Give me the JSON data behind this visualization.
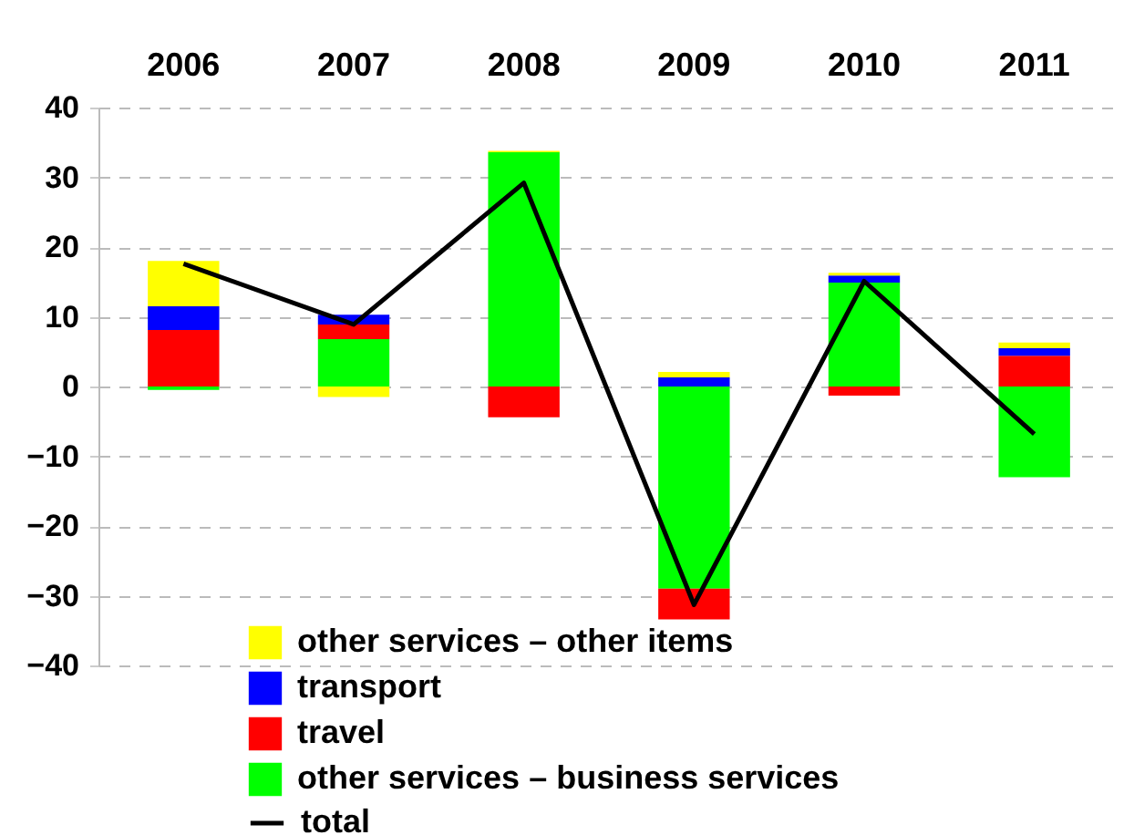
{
  "chart_data": {
    "type": "bar",
    "stacked": true,
    "categories": [
      "2006",
      "2007",
      "2008",
      "2009",
      "2010",
      "2011"
    ],
    "series": [
      {
        "name": "other services – business services",
        "color": "#00ff00",
        "values": [
          -0.5,
          6.8,
          33.6,
          -29,
          14.9,
          -13
        ]
      },
      {
        "name": "travel",
        "color": "#ff0000",
        "values": [
          8.1,
          2.1,
          -4.4,
          -4.4,
          -1.3,
          4.4
        ]
      },
      {
        "name": "transport",
        "color": "#0000ff",
        "values": [
          3.4,
          1.4,
          0,
          1.3,
          1,
          1.1
        ]
      },
      {
        "name": "other services – other items",
        "color": "#ffff00",
        "values": [
          6.5,
          -1.5,
          0.2,
          0.8,
          0.4,
          0.8
        ]
      },
      {
        "name": "total",
        "type": "line",
        "color": "#000000",
        "values": [
          17.6,
          8.9,
          29.2,
          -31.3,
          15.1,
          -6.8
        ]
      }
    ],
    "ylim": [
      -40,
      40
    ],
    "yticks": [
      -40,
      -30,
      -20,
      -10,
      0,
      10,
      20,
      30,
      40
    ],
    "grid": "y",
    "legend": "bottom"
  }
}
